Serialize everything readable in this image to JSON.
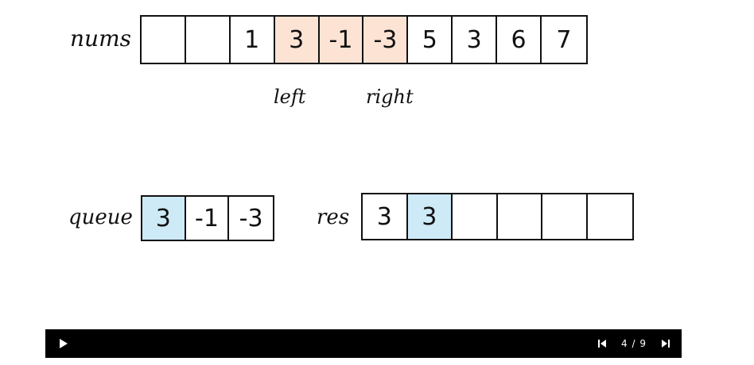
{
  "nums": {
    "label": "nums",
    "cells": [
      "",
      "",
      "1",
      "3",
      "-1",
      "-3",
      "5",
      "3",
      "6",
      "7"
    ],
    "highlighted": [
      3,
      4,
      5
    ],
    "highlight_color": "#fde3d4"
  },
  "pointers": {
    "left": "left",
    "right": "right"
  },
  "queue": {
    "label": "queue",
    "cells": [
      "3",
      "-1",
      "-3"
    ],
    "highlighted": [
      0
    ],
    "highlight_color": "#cdeaf6"
  },
  "res": {
    "label": "res",
    "cells": [
      "3",
      "3",
      "",
      "",
      "",
      ""
    ],
    "highlighted": [
      1
    ],
    "highlight_color": "#cdeaf6"
  },
  "player": {
    "play_icon": "play-icon",
    "prev_icon": "skip-previous-icon",
    "next_icon": "skip-next-icon",
    "counter": "4 / 9"
  }
}
